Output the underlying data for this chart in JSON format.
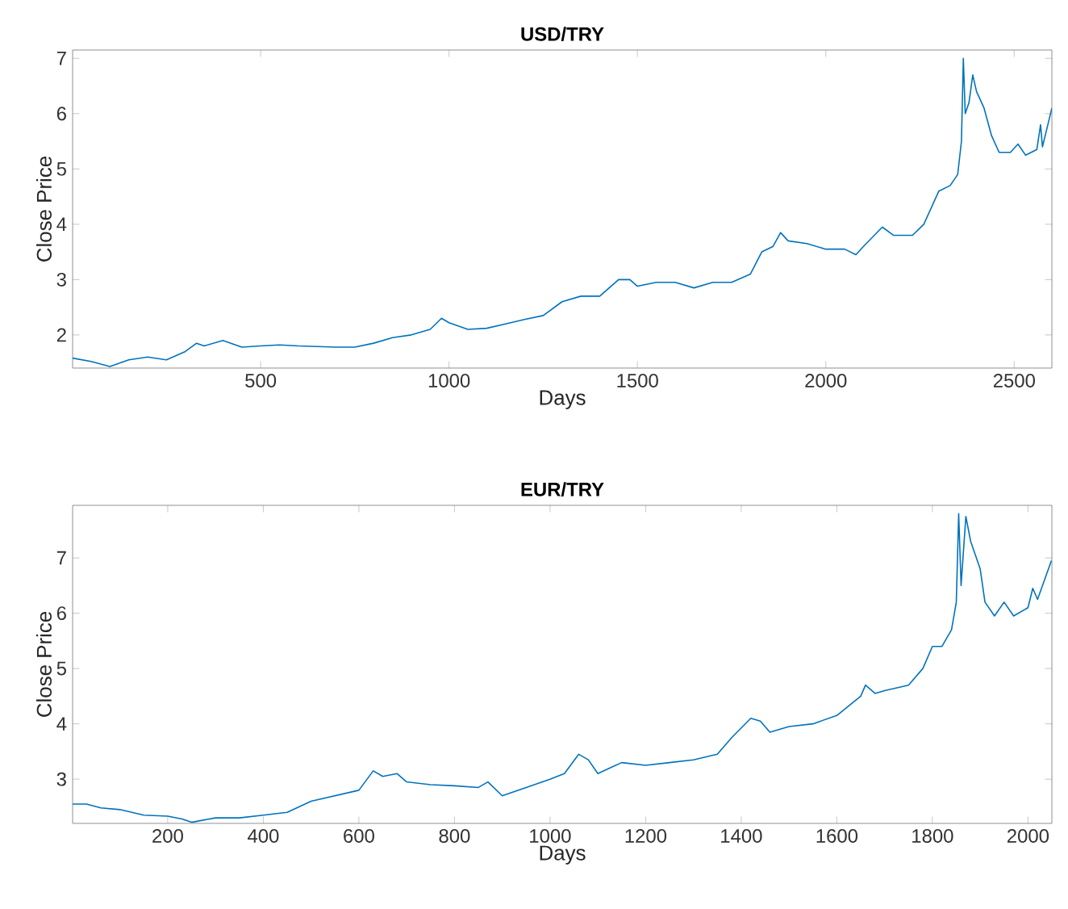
{
  "chart_data": [
    {
      "type": "line",
      "title": "USD/TRY",
      "xlabel": "Days",
      "ylabel": "Close Price",
      "color": "#0072bd",
      "xlim": [
        1,
        2600
      ],
      "ylim": [
        1.4,
        7.15
      ],
      "xticks": [
        500,
        1000,
        1500,
        2000,
        2500
      ],
      "yticks": [
        2,
        3,
        4,
        5,
        6,
        7
      ],
      "grid": false,
      "x": [
        1,
        50,
        100,
        150,
        200,
        250,
        300,
        330,
        350,
        400,
        450,
        500,
        550,
        600,
        700,
        750,
        800,
        850,
        900,
        950,
        980,
        1000,
        1050,
        1100,
        1150,
        1200,
        1250,
        1300,
        1350,
        1400,
        1450,
        1480,
        1500,
        1550,
        1600,
        1650,
        1700,
        1750,
        1800,
        1830,
        1860,
        1880,
        1900,
        1950,
        2000,
        2050,
        2080,
        2100,
        2150,
        2180,
        2230,
        2260,
        2300,
        2330,
        2350,
        2360,
        2365,
        2370,
        2380,
        2390,
        2400,
        2420,
        2440,
        2460,
        2490,
        2510,
        2530,
        2560,
        2570,
        2575,
        2600
      ],
      "values": [
        1.58,
        1.52,
        1.43,
        1.55,
        1.6,
        1.55,
        1.7,
        1.85,
        1.8,
        1.9,
        1.78,
        1.8,
        1.82,
        1.8,
        1.78,
        1.78,
        1.85,
        1.95,
        2.0,
        2.1,
        2.3,
        2.22,
        2.1,
        2.12,
        2.2,
        2.28,
        2.35,
        2.6,
        2.7,
        2.7,
        3.0,
        3.0,
        2.88,
        2.95,
        2.95,
        2.85,
        2.95,
        2.95,
        3.1,
        3.5,
        3.6,
        3.85,
        3.7,
        3.65,
        3.55,
        3.55,
        3.45,
        3.6,
        3.95,
        3.8,
        3.8,
        4.0,
        4.6,
        4.7,
        4.9,
        5.5,
        7.0,
        6.0,
        6.2,
        6.7,
        6.4,
        6.1,
        5.6,
        5.3,
        5.3,
        5.45,
        5.25,
        5.35,
        5.8,
        5.4,
        6.1
      ]
    },
    {
      "type": "line",
      "title": "EUR/TRY",
      "xlabel": "Days",
      "ylabel": "Close Price",
      "color": "#0072bd",
      "xlim": [
        1,
        2050
      ],
      "ylim": [
        2.2,
        7.95
      ],
      "xticks": [
        200,
        400,
        600,
        800,
        1000,
        1200,
        1400,
        1600,
        1800,
        2000
      ],
      "yticks": [
        3,
        4,
        5,
        6,
        7
      ],
      "grid": false,
      "x": [
        1,
        30,
        60,
        100,
        150,
        200,
        230,
        250,
        300,
        350,
        400,
        450,
        500,
        550,
        600,
        630,
        650,
        680,
        700,
        750,
        800,
        850,
        870,
        900,
        950,
        1000,
        1030,
        1060,
        1080,
        1100,
        1150,
        1200,
        1250,
        1300,
        1350,
        1380,
        1420,
        1440,
        1460,
        1500,
        1550,
        1600,
        1650,
        1660,
        1680,
        1700,
        1750,
        1780,
        1800,
        1820,
        1840,
        1850,
        1855,
        1860,
        1870,
        1880,
        1900,
        1910,
        1930,
        1950,
        1970,
        2000,
        2010,
        2020,
        2049
      ],
      "values": [
        2.55,
        2.55,
        2.48,
        2.45,
        2.35,
        2.33,
        2.28,
        2.22,
        2.3,
        2.3,
        2.35,
        2.4,
        2.6,
        2.7,
        2.8,
        3.15,
        3.05,
        3.1,
        2.95,
        2.9,
        2.88,
        2.85,
        2.95,
        2.7,
        2.85,
        3.0,
        3.1,
        3.45,
        3.35,
        3.1,
        3.3,
        3.25,
        3.3,
        3.35,
        3.45,
        3.75,
        4.1,
        4.05,
        3.85,
        3.95,
        4.0,
        4.15,
        4.5,
        4.7,
        4.55,
        4.6,
        4.7,
        5.0,
        5.4,
        5.4,
        5.7,
        6.2,
        7.8,
        6.5,
        7.75,
        7.3,
        6.8,
        6.2,
        5.95,
        6.2,
        5.95,
        6.1,
        6.45,
        6.25,
        6.95
      ]
    }
  ]
}
